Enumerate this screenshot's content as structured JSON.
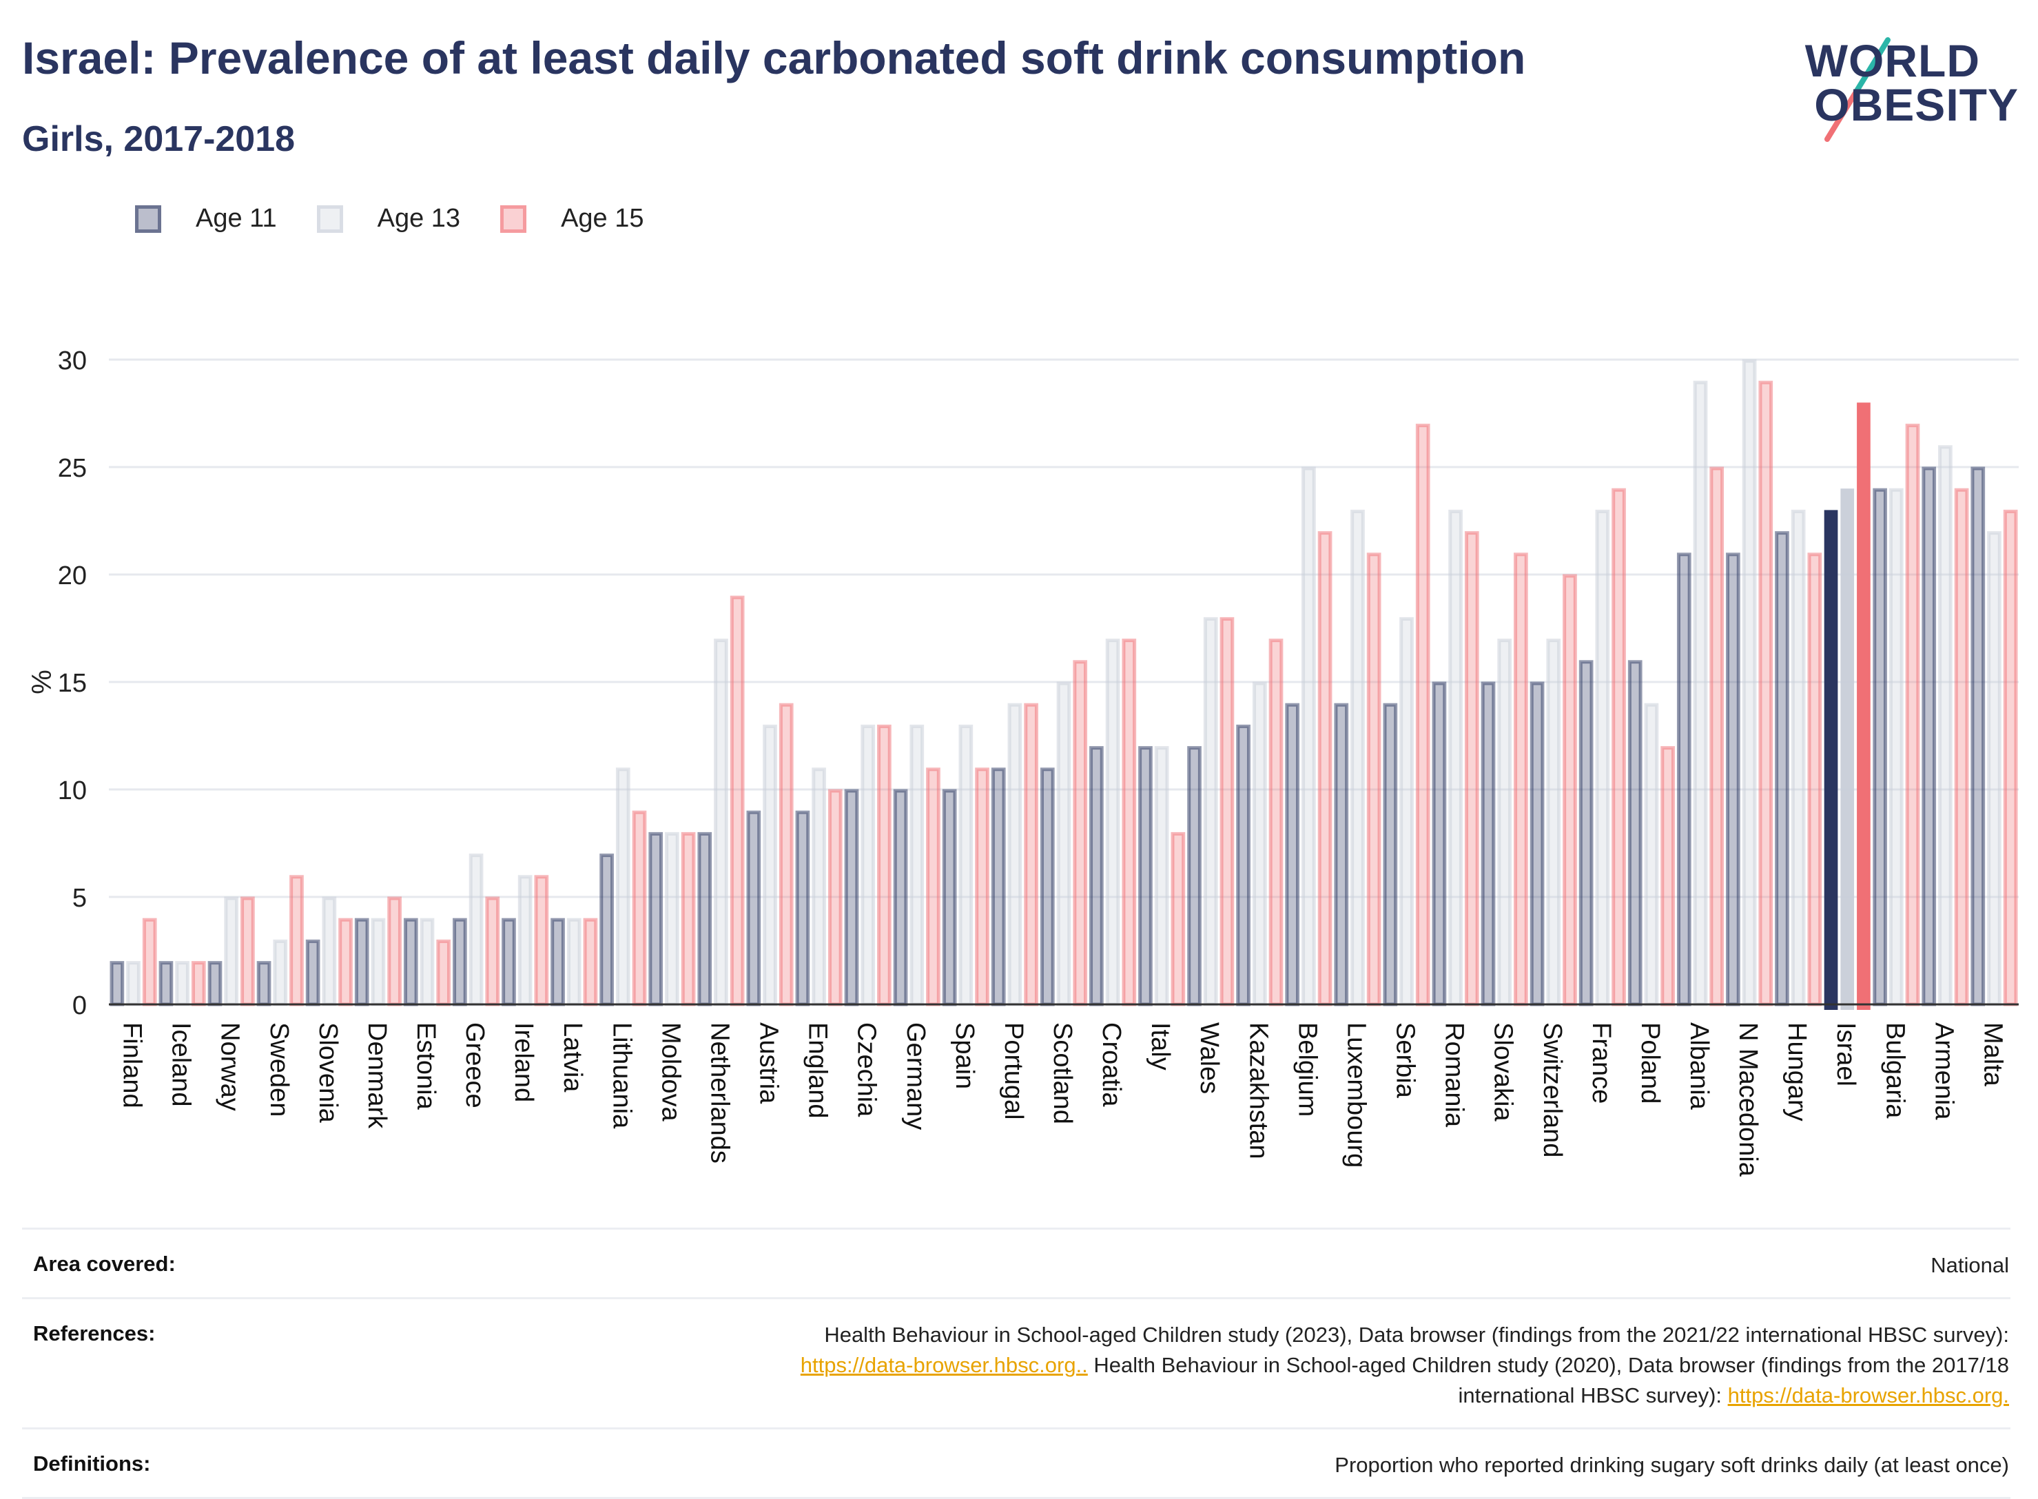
{
  "title": "Israel: Prevalence of at least daily carbonated soft drink consumption",
  "subtitle": "Girls, 2017-2018",
  "logo": {
    "line1": "WORLD",
    "line2": "OBESITY"
  },
  "colors": {
    "age11": "#2a3560",
    "age13": "#c8cdd8",
    "age15": "#f07075",
    "title": "#2a3560",
    "link": "#e8a300"
  },
  "chart_data": {
    "type": "bar",
    "ylabel": "%",
    "ylim": [
      0,
      30
    ],
    "yticks": [
      0,
      5,
      10,
      15,
      20,
      25,
      30
    ],
    "grid": true,
    "legend_position": "top-left",
    "highlight": "Israel",
    "categories": [
      "Finland",
      "Iceland",
      "Norway",
      "Sweden",
      "Slovenia",
      "Denmark",
      "Estonia",
      "Greece",
      "Ireland",
      "Latvia",
      "Lithuania",
      "Moldova",
      "Netherlands",
      "Austria",
      "England",
      "Czechia",
      "Germany",
      "Spain",
      "Portugal",
      "Scotland",
      "Croatia",
      "Italy",
      "Wales",
      "Kazakhstan",
      "Belgium",
      "Luxembourg",
      "Serbia",
      "Romania",
      "Slovakia",
      "Switzerland",
      "France",
      "Poland",
      "Albania",
      "N Macedonia",
      "Hungary",
      "Israel",
      "Bulgaria",
      "Armenia",
      "Malta"
    ],
    "series": [
      {
        "name": "Age 11",
        "values": [
          2,
          2,
          2,
          2,
          3,
          4,
          4,
          4,
          4,
          4,
          7,
          8,
          8,
          9,
          9,
          10,
          10,
          10,
          11,
          11,
          12,
          12,
          12,
          13,
          14,
          14,
          14,
          15,
          15,
          15,
          16,
          16,
          21,
          21,
          22,
          23,
          24,
          25,
          25
        ]
      },
      {
        "name": "Age 13",
        "values": [
          2,
          2,
          5,
          3,
          5,
          4,
          4,
          7,
          6,
          4,
          11,
          8,
          17,
          13,
          11,
          13,
          13,
          13,
          14,
          15,
          17,
          12,
          18,
          15,
          25,
          23,
          18,
          23,
          17,
          17,
          23,
          14,
          29,
          30,
          23,
          24,
          24,
          26,
          22
        ]
      },
      {
        "name": "Age 15",
        "values": [
          4,
          2,
          5,
          6,
          4,
          5,
          3,
          5,
          6,
          4,
          9,
          8,
          19,
          14,
          10,
          13,
          11,
          11,
          14,
          16,
          17,
          8,
          18,
          17,
          22,
          21,
          27,
          22,
          21,
          20,
          24,
          12,
          25,
          29,
          21,
          28,
          27,
          24,
          23
        ]
      }
    ]
  },
  "footer": {
    "area_label": "Area covered:",
    "area_value": "National",
    "references_label": "References:",
    "ref_part1": "Health Behaviour in School-aged Children study (2023), Data browser (findings from the 2021/22 international HBSC survey):",
    "ref_link1": "https://data-browser.hbsc.org..",
    "ref_part2": " Health Behaviour in School-aged Children study (2020), Data browser (findings from the 2017/18",
    "ref_part3": "international HBSC survey): ",
    "ref_link2": "https://data-browser.hbsc.org.",
    "definitions_label": "Definitions:",
    "definitions_value": "Proportion who reported drinking sugary soft drinks daily (at least once)"
  }
}
